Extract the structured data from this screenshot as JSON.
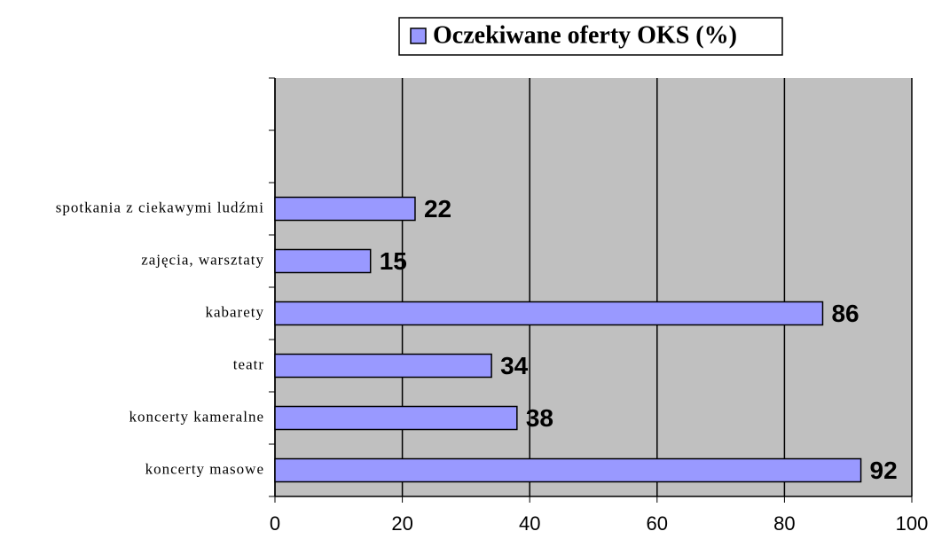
{
  "chart_data": {
    "type": "bar",
    "orientation": "horizontal",
    "legend": "top",
    "series": [
      {
        "name": "Oczekiwane oferty OKS (%)",
        "color": "#9999ff",
        "values": [
          92,
          38,
          34,
          86,
          15,
          22,
          null,
          null
        ]
      }
    ],
    "categories": [
      "koncerty masowe",
      "koncerty kameralne",
      "teatr",
      "kabarety",
      "zajęcia, warsztaty",
      "spotkania z ciekawymi ludźmi",
      null,
      null
    ],
    "xlim": [
      0,
      100
    ],
    "xticks": [
      0,
      20,
      40,
      60,
      80,
      100
    ],
    "grid": true
  }
}
